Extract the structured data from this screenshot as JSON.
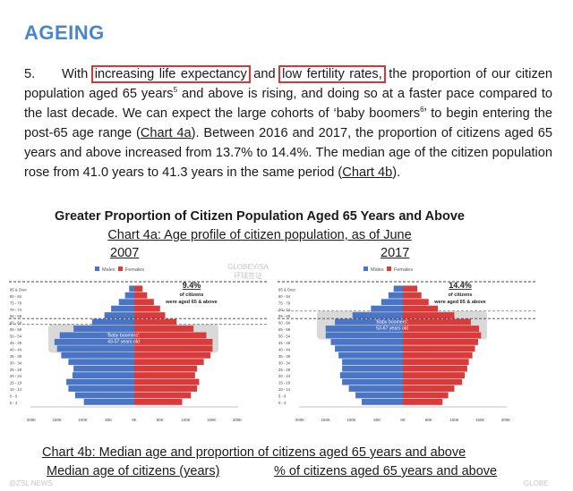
{
  "heading": "AGEING",
  "paragraph": {
    "number": "5.",
    "t1": "With ",
    "h1": "increasing life expectancy",
    "t2": " and ",
    "h2": "low fertility rates,",
    "t3": " the proportion of our citizen population aged 65 years",
    "sup1": "5",
    "t4": " and above is rising, and doing so at a faster pace compared to the last decade. We can expect the large cohorts of ‘baby boomers",
    "sup2": "6",
    "t5": "’ to begin entering the post-65 age range (",
    "link1": "Chart 4a",
    "t6": "). Between 2016 and 2017, the proportion of citizens aged 65 years and above increased from 13.7% to 14.4%. The median age of the citizen population rose from 41.0 years to 41.3 years in the same period (",
    "link2": "Chart 4b",
    "t7": ")."
  },
  "chart_title": "Greater Proportion of Citizen Population Aged 65 Years and Above",
  "chart_subtitle": "Chart 4a: Age profile of citizen population, as of June",
  "watermark": {
    "line1": "GLOBEVISA",
    "line2": "环球签证"
  },
  "chart_data": [
    {
      "type": "bar",
      "year": "2007",
      "legend": [
        "Males",
        "Females"
      ],
      "colors": {
        "males": "#4a74c4",
        "females": "#d93a3a"
      },
      "categories": [
        "0 - 4",
        "5 - 9",
        "10 - 14",
        "15 - 19",
        "20 - 24",
        "25 - 29",
        "30 - 34",
        "35 - 39",
        "40 - 44",
        "45 - 49",
        "50 - 54",
        "55 - 59",
        "60 - 64",
        "65 - 69",
        "70 - 74",
        "75 - 79",
        "80 - 84",
        "85 & Over"
      ],
      "males": [
        98,
        115,
        128,
        132,
        120,
        118,
        128,
        142,
        150,
        155,
        145,
        118,
        82,
        58,
        45,
        30,
        18,
        10
      ],
      "females": [
        93,
        110,
        122,
        126,
        118,
        122,
        135,
        148,
        152,
        152,
        140,
        115,
        82,
        60,
        50,
        38,
        25,
        16
      ],
      "xticks": [
        "200K",
        "150K",
        "100K",
        "50K",
        "0K",
        "50K",
        "100K",
        "150K",
        "200K"
      ],
      "annotation_pct": "9.4%",
      "annotation_text": [
        "of citizens",
        "were aged 65 & above"
      ],
      "boomer_label": [
        "'Baby boomers':",
        "43-57 years old"
      ],
      "boomer_range": [
        "40 - 44",
        "55 - 59"
      ]
    },
    {
      "type": "bar",
      "year": "2017",
      "legend": [
        "Males",
        "Females"
      ],
      "colors": {
        "males": "#4a74c4",
        "females": "#d93a3a"
      },
      "categories": [
        "0 - 4",
        "5 - 9",
        "10 - 14",
        "15 - 19",
        "20 - 24",
        "25 - 29",
        "30 - 34",
        "35 - 39",
        "40 - 44",
        "45 - 49",
        "50 - 54",
        "55 - 59",
        "60 - 64",
        "65 - 69",
        "70 - 74",
        "75 - 79",
        "80 - 84",
        "85 & Over"
      ],
      "males": [
        80,
        92,
        105,
        118,
        122,
        118,
        118,
        125,
        132,
        140,
        150,
        150,
        132,
        98,
        62,
        42,
        28,
        18
      ],
      "females": [
        77,
        88,
        100,
        115,
        120,
        125,
        128,
        135,
        140,
        146,
        152,
        148,
        132,
        100,
        68,
        50,
        36,
        28
      ],
      "xticks": [
        "200K",
        "150K",
        "100K",
        "50K",
        "0K",
        "50K",
        "100K",
        "150K",
        "200K"
      ],
      "annotation_pct": "14.4%",
      "annotation_text": [
        "of citizens",
        "were aged 65 & above"
      ],
      "boomer_label": [
        "'Baby boomers':",
        "53-67 years old"
      ],
      "boomer_range": [
        "50 - 54",
        "65 - 69"
      ]
    }
  ],
  "chart4b_title": "Chart 4b: Median age and proportion of citizens aged 65 years and above",
  "chart4b_col_left": "Median age of citizens (years)",
  "chart4b_col_right": "% of citizens aged 65 years and above",
  "footer_left": "@ZSL NEWS",
  "footer_right": "GLOBE"
}
